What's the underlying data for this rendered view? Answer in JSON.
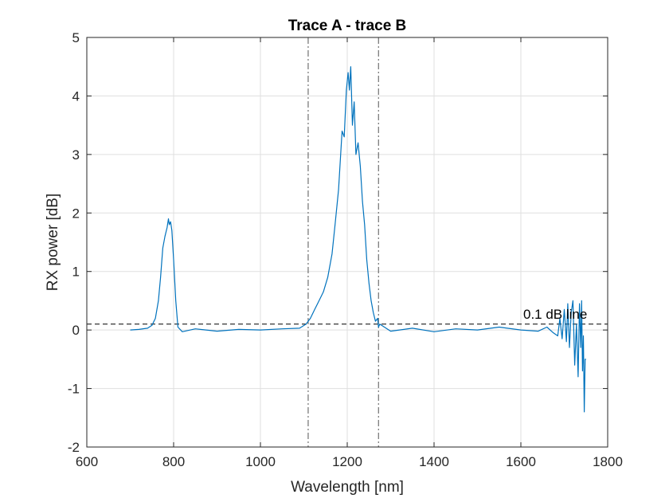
{
  "chart_data": {
    "type": "line",
    "title": "Trace A - trace B",
    "xlabel": "Wavelength [nm]",
    "ylabel": "RX power [dB]",
    "xlim": [
      600,
      1800
    ],
    "ylim": [
      -2,
      5
    ],
    "xticks": [
      600,
      800,
      1000,
      1200,
      1400,
      1600,
      1800
    ],
    "yticks": [
      -2,
      -1,
      0,
      1,
      2,
      3,
      4,
      5
    ],
    "xtick_labels": [
      "600",
      "800",
      "1000",
      "1200",
      "1400",
      "1600",
      "1800"
    ],
    "ytick_labels": [
      "-2",
      "-1",
      "0",
      "1",
      "2",
      "3",
      "4",
      "5"
    ],
    "grid": true,
    "series": [
      {
        "color": "#0072BD",
        "x": [
          700,
          720,
          740,
          750,
          758,
          765,
          770,
          775,
          780,
          785,
          788,
          790,
          793,
          796,
          800,
          805,
          810,
          820,
          850,
          900,
          950,
          1000,
          1050,
          1090,
          1105,
          1115,
          1125,
          1135,
          1145,
          1155,
          1165,
          1172,
          1180,
          1188,
          1193,
          1198,
          1202,
          1205,
          1208,
          1212,
          1216,
          1220,
          1225,
          1230,
          1235,
          1240,
          1245,
          1250,
          1255,
          1260,
          1265,
          1270,
          1272,
          1275,
          1300,
          1350,
          1400,
          1450,
          1500,
          1550,
          1600,
          1640,
          1660,
          1675,
          1685,
          1690,
          1695,
          1700,
          1705,
          1708,
          1712,
          1716,
          1720,
          1724,
          1728,
          1732,
          1735,
          1738,
          1740,
          1742,
          1744,
          1746,
          1748,
          1750
        ],
        "y": [
          0.0,
          0.01,
          0.03,
          0.08,
          0.2,
          0.5,
          0.9,
          1.4,
          1.6,
          1.75,
          1.9,
          1.8,
          1.85,
          1.7,
          1.2,
          0.5,
          0.05,
          -0.03,
          0.02,
          -0.02,
          0.01,
          0.0,
          0.02,
          0.03,
          0.1,
          0.2,
          0.35,
          0.5,
          0.65,
          0.9,
          1.3,
          1.8,
          2.4,
          3.4,
          3.3,
          4.1,
          4.4,
          4.1,
          4.5,
          3.5,
          3.9,
          3.0,
          3.2,
          2.8,
          2.2,
          1.8,
          1.2,
          0.8,
          0.5,
          0.3,
          0.15,
          0.2,
          0.05,
          0.1,
          -0.02,
          0.03,
          -0.03,
          0.02,
          0.0,
          0.05,
          0.0,
          -0.02,
          0.05,
          -0.05,
          -0.1,
          0.2,
          -0.15,
          0.35,
          -0.2,
          0.45,
          -0.3,
          0.3,
          0.5,
          -0.6,
          0.1,
          -0.8,
          0.45,
          -0.3,
          0.5,
          -0.7,
          -0.1,
          -1.4,
          -0.5,
          -0.5
        ]
      }
    ],
    "reference_lines": {
      "horizontal": {
        "y": 0.1,
        "style": "dashed",
        "color": "#000000",
        "label": "0.1 dB line"
      },
      "vertical": [
        {
          "x": 1110,
          "style": "dash-dot",
          "color": "#000000"
        },
        {
          "x": 1272,
          "style": "dash-dot",
          "color": "#000000"
        }
      ]
    }
  }
}
